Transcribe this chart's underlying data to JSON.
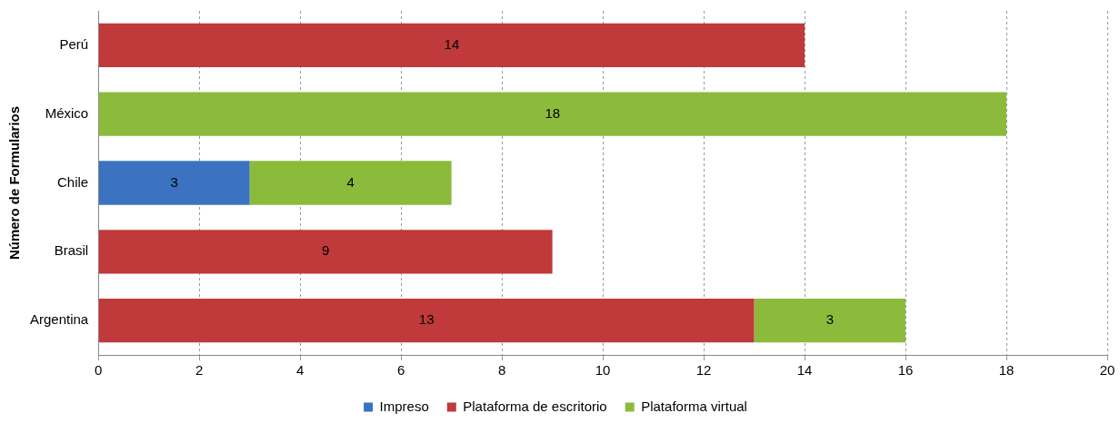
{
  "chart_data": {
    "type": "bar",
    "orientation": "horizontal",
    "stacked": true,
    "ylabel": "Número de Formularios",
    "categories": [
      "Perú",
      "México",
      "Chile",
      "Brasil",
      "Argentina"
    ],
    "series": [
      {
        "name": "Impreso",
        "color": "#3b73c0",
        "values": [
          null,
          null,
          3,
          null,
          null
        ]
      },
      {
        "name": "Plataforma de escritorio",
        "color": "#c0393b",
        "values": [
          14,
          null,
          null,
          9,
          13
        ]
      },
      {
        "name": "Plataforma virtual",
        "color": "#8cbb3c",
        "values": [
          null,
          18,
          4,
          null,
          3
        ]
      }
    ],
    "xlim": [
      0,
      20
    ],
    "xticks": [
      0,
      2,
      4,
      6,
      8,
      10,
      12,
      14,
      16,
      18,
      20
    ],
    "grid": "x",
    "legend": "bottom",
    "data_labels": true
  }
}
